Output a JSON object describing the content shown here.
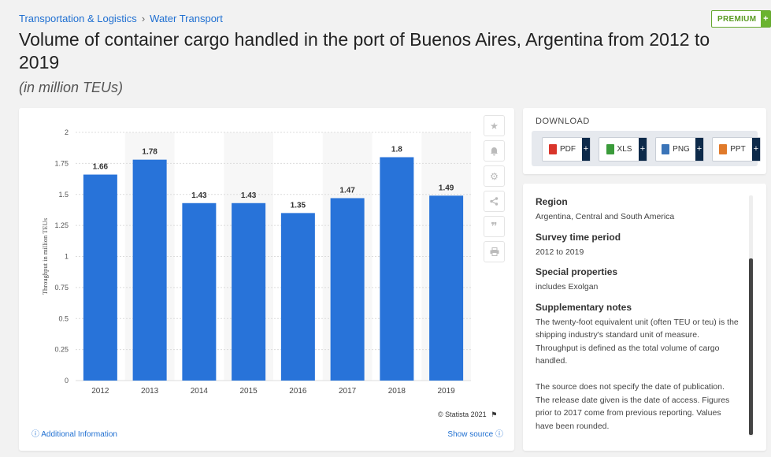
{
  "breadcrumb": {
    "category": "Transportation & Logistics",
    "separator": "›",
    "subcategory": "Water Transport"
  },
  "premium": {
    "label": "PREMIUM",
    "plus": "+"
  },
  "title": "Volume of container cargo handled in the port of Buenos Aires, Argentina from 2012 to 2019",
  "subtitle": "(in million TEUs)",
  "toolbar": {
    "icons": [
      "star-icon",
      "bell-icon",
      "gear-icon",
      "share-icon",
      "quote-icon",
      "print-icon"
    ]
  },
  "footer": {
    "additional_info": "ⓘ Additional Information",
    "show_source": "Show source ⓘ",
    "copyright": "© Statista 2021"
  },
  "download": {
    "title": "DOWNLOAD",
    "buttons": [
      {
        "label": "PDF",
        "plus": "+",
        "color": "#d9352b"
      },
      {
        "label": "XLS",
        "plus": "+",
        "color": "#3a9b3a"
      },
      {
        "label": "PNG",
        "plus": "+",
        "color": "#3a74b8"
      },
      {
        "label": "PPT",
        "plus": "+",
        "color": "#e07a2a"
      }
    ]
  },
  "info": {
    "region_title": "Region",
    "region_value": "Argentina, Central and South America",
    "survey_title": "Survey time period",
    "survey_value": "2012 to 2019",
    "special_title": "Special properties",
    "special_value": "includes Exolgan",
    "notes_title": "Supplementary notes",
    "notes_value": "The twenty-foot equivalent unit (often TEU or teu) is the shipping industry's standard unit of measure. Throughput is defined as the total volume of cargo handled.\n\nThe source does not specify the date of publication. The release date given is the date of access. Figures prior to 2017 come from previous reporting. Values have been rounded."
  },
  "chart_data": {
    "type": "bar",
    "categories": [
      "2012",
      "2013",
      "2014",
      "2015",
      "2016",
      "2017",
      "2018",
      "2019"
    ],
    "values": [
      1.66,
      1.78,
      1.43,
      1.43,
      1.35,
      1.47,
      1.8,
      1.49
    ],
    "value_labels": [
      "1.66",
      "1.78",
      "1.43",
      "1.43",
      "1.35",
      "1.47",
      "1.8",
      "1.49"
    ],
    "ylabel": "Throughput in million TEUs",
    "ylim": [
      0,
      2
    ],
    "yticks": [
      0,
      0.25,
      0.5,
      0.75,
      1,
      1.25,
      1.5,
      1.75,
      2
    ],
    "ytick_labels": [
      "0",
      "0.25",
      "0.5",
      "0.75",
      "1",
      "1.25",
      "1.5",
      "1.75",
      "2"
    ],
    "bar_color": "#2873d9",
    "grid": true
  }
}
